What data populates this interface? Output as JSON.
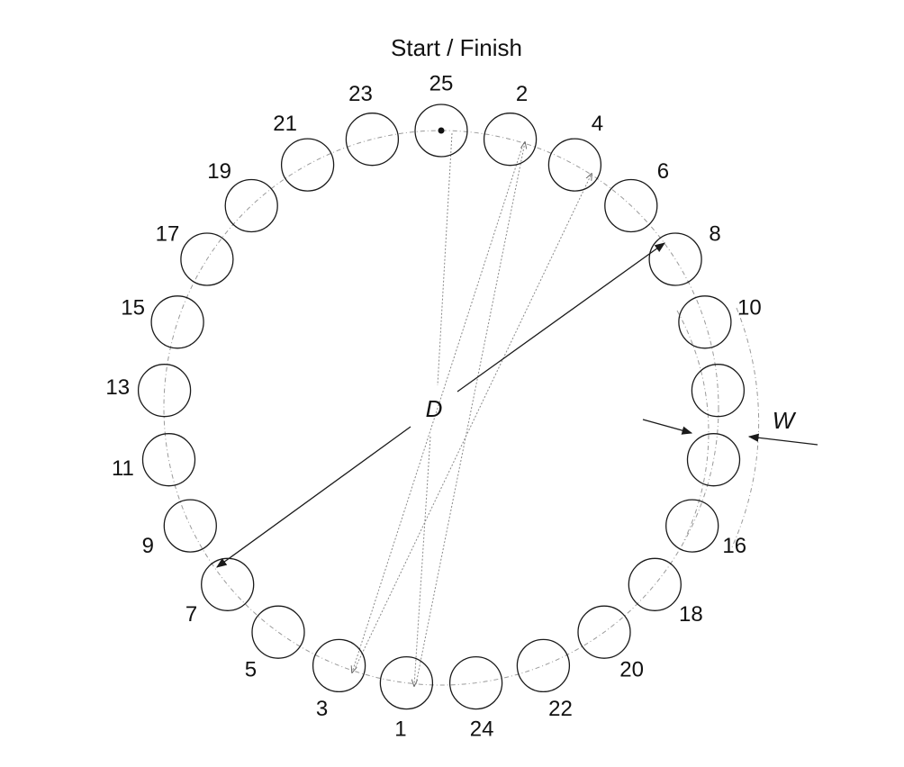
{
  "title": "Start / Finish",
  "distance_symbol": "D",
  "width_symbol": "W",
  "targets": [
    {
      "label": "25",
      "start": true
    },
    {
      "label": "2"
    },
    {
      "label": "4"
    },
    {
      "label": "6"
    },
    {
      "label": "8"
    },
    {
      "label": "10"
    },
    {
      "label": ""
    },
    {
      "label": ""
    },
    {
      "label": "16"
    },
    {
      "label": "18"
    },
    {
      "label": "20"
    },
    {
      "label": "22"
    },
    {
      "label": "24"
    },
    {
      "label": "1"
    },
    {
      "label": "3"
    },
    {
      "label": "5"
    },
    {
      "label": "7"
    },
    {
      "label": "9"
    },
    {
      "label": "11"
    },
    {
      "label": "13"
    },
    {
      "label": "15"
    },
    {
      "label": "17"
    },
    {
      "label": "19"
    },
    {
      "label": "21"
    },
    {
      "label": "23"
    }
  ]
}
